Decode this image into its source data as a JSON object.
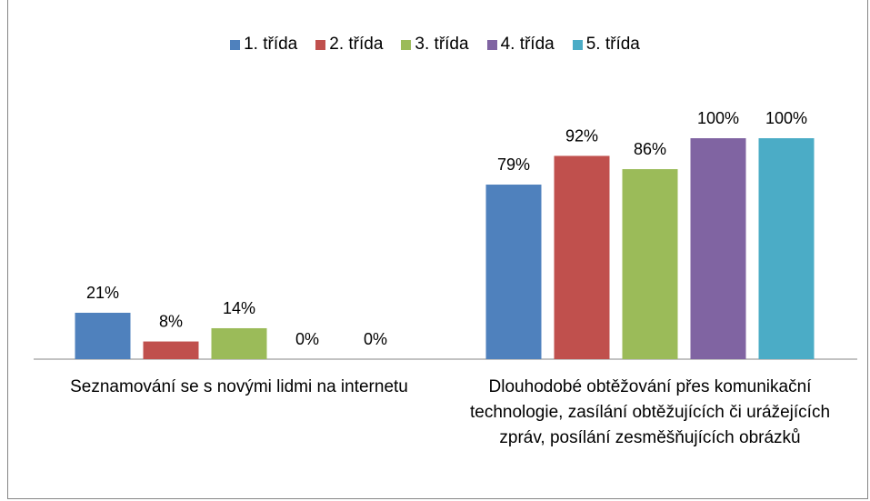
{
  "chart_data": {
    "type": "bar",
    "categories": [
      "Seznamování se s novými lidmi na internetu",
      "Dlouhodobé obtěžování přes komunikační technologie, zasílání obtěžujících či urážejících zpráv, posílání zesměšňujících obrázků"
    ],
    "series": [
      {
        "name": "1. třída",
        "color": "#4f81bd",
        "values": [
          21,
          79
        ],
        "value_labels": [
          "21%",
          "79%"
        ]
      },
      {
        "name": "2. třída",
        "color": "#c0504d",
        "values": [
          8,
          92
        ],
        "value_labels": [
          "8%",
          "92%"
        ]
      },
      {
        "name": "3. třída",
        "color": "#9bbb59",
        "values": [
          14,
          86
        ],
        "value_labels": [
          "14%",
          "86%"
        ]
      },
      {
        "name": "4. třída",
        "color": "#8064a2",
        "values": [
          0,
          100
        ],
        "value_labels": [
          "0%",
          "100%"
        ]
      },
      {
        "name": "5. třída",
        "color": "#4bacc6",
        "values": [
          0,
          100
        ],
        "value_labels": [
          "0%",
          "100%"
        ]
      }
    ],
    "ylim": [
      0,
      100
    ],
    "legend": "top"
  }
}
